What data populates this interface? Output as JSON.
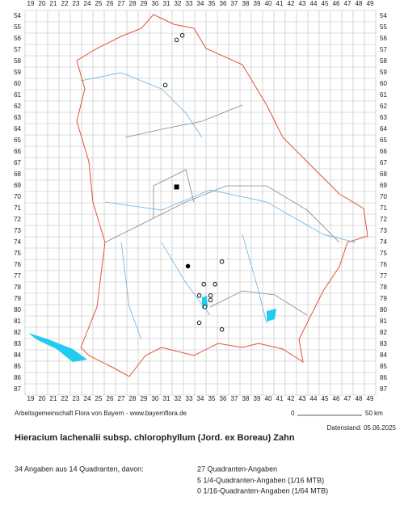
{
  "map": {
    "columns": [
      19,
      20,
      21,
      22,
      23,
      24,
      25,
      26,
      27,
      28,
      29,
      30,
      31,
      32,
      33,
      34,
      35,
      36,
      37,
      38,
      39,
      40,
      41,
      42,
      43,
      44,
      45,
      46,
      47,
      48,
      49
    ],
    "rows": [
      54,
      55,
      56,
      57,
      58,
      59,
      60,
      61,
      62,
      63,
      64,
      65,
      66,
      67,
      68,
      69,
      70,
      71,
      72,
      73,
      74,
      75,
      76,
      77,
      78,
      79,
      80,
      81,
      82,
      83,
      84,
      85,
      86,
      87
    ],
    "points": [
      {
        "col": 32.4,
        "row": 55.7,
        "marker": "open-circle"
      },
      {
        "col": 31.9,
        "row": 56.1,
        "marker": "open-circle"
      },
      {
        "col": 30.9,
        "row": 60.1,
        "marker": "open-circle"
      },
      {
        "col": 31.9,
        "row": 69.1,
        "marker": "filled-square"
      },
      {
        "col": 32.9,
        "row": 76.1,
        "marker": "filled-circle"
      },
      {
        "col": 35.9,
        "row": 75.7,
        "marker": "open-circle"
      },
      {
        "col": 34.3,
        "row": 77.7,
        "marker": "open-circle"
      },
      {
        "col": 35.3,
        "row": 77.7,
        "marker": "open-circle"
      },
      {
        "col": 33.9,
        "row": 78.7,
        "marker": "open-circle"
      },
      {
        "col": 34.9,
        "row": 78.7,
        "marker": "open-circle"
      },
      {
        "col": 34.9,
        "row": 79.1,
        "marker": "open-circle"
      },
      {
        "col": 34.4,
        "row": 79.7,
        "marker": "open-circle"
      },
      {
        "col": 33.9,
        "row": 81.1,
        "marker": "open-circle"
      },
      {
        "col": 35.9,
        "row": 81.7,
        "marker": "open-circle"
      }
    ]
  },
  "footer": {
    "credit": "Arbeitsgemeinschaft Flora von Bayern - www.bayernflora.de",
    "scale_start": "0",
    "scale_end": "50 km",
    "date": "Datenstand: 05.06.2025",
    "title": "Hieracium lachenalii subsp. chlorophyllum (Jord. ex Boreau) Zahn",
    "summary": "34 Angaben aus 14 Quadranten, davon:",
    "stats": [
      "27 Quadranten-Angaben",
      "5 1/4-Quadranten-Angaben (1/16 MTB)",
      "0 1/16-Quadranten-Angaben (1/64 MTB)"
    ]
  }
}
